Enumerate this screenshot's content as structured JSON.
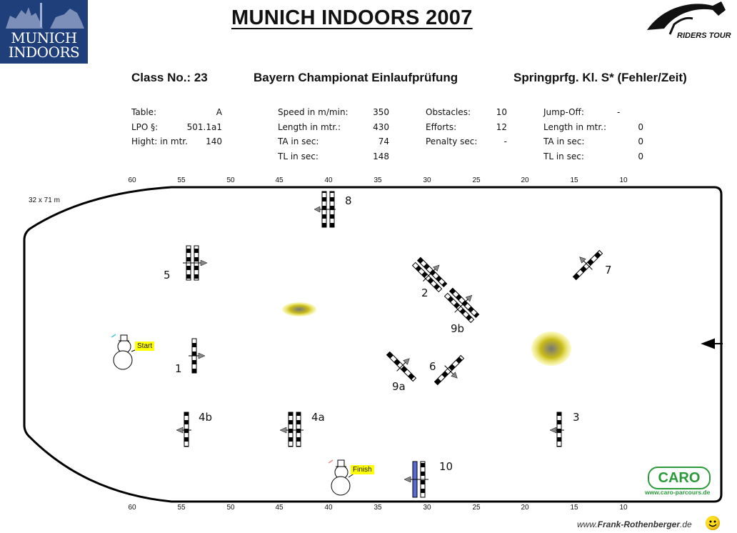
{
  "logo_left": {
    "line1": "MUNICH",
    "line2": "INDOORS"
  },
  "title": "MUNICH  INDOORS  2007",
  "riders_logo": "RIDERS TOUR",
  "class_no": "Class No.: 23",
  "class_name": "Bayern Championat Einlaufprüfung",
  "class_type": "Springprfg. Kl. S* (Fehler/Zeit)",
  "info": {
    "col1": [
      {
        "label": "Table:",
        "value": "A"
      },
      {
        "label": "LPO  §:",
        "value": "501.1a1"
      },
      {
        "label": "Hight: in mtr.",
        "value": "140"
      }
    ],
    "col2": [
      {
        "label": "Speed in m/min:",
        "value": "350"
      },
      {
        "label": "Length in mtr.:",
        "value": "430"
      },
      {
        "label": "TA in sec:",
        "value": "74"
      },
      {
        "label": "TL in sec:",
        "value": "148"
      }
    ],
    "col3": [
      {
        "label": "Obstacles:",
        "value": "10"
      },
      {
        "label": "Efforts:",
        "value": "12"
      },
      {
        "label": "Penalty sec:",
        "value": "-"
      }
    ],
    "col4": [
      {
        "label": "Jump-Off:",
        "value": "-"
      },
      {
        "label": "Length in mtr.:",
        "value": "0"
      },
      {
        "label": "TA in sec:",
        "value": "0"
      },
      {
        "label": "TL in sec:",
        "value": "0"
      }
    ]
  },
  "scale_ticks": [
    "60",
    "55",
    "50",
    "45",
    "40",
    "35",
    "30",
    "25",
    "20",
    "15",
    "10"
  ],
  "arena_size": "32 x 71 m",
  "fences": {
    "f1": "1",
    "f2": "2",
    "f3": "3",
    "f4a": "4a",
    "f4b": "4b",
    "f5": "5",
    "f6": "6",
    "f7": "7",
    "f8": "8",
    "f9a": "9a",
    "f9b": "9b",
    "f10": "10"
  },
  "start_label": "Start",
  "finish_label": "Finish",
  "caro": {
    "name": "CARO",
    "url": "www.caro-parcours.de"
  },
  "footer": {
    "prefix": "www.",
    "name": "Frank-Rothenberger",
    "suffix": ".de"
  }
}
